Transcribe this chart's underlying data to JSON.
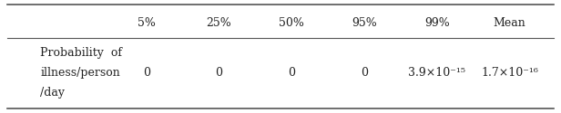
{
  "col_headers": [
    "",
    "5%",
    "25%",
    "50%",
    "95%",
    "99%",
    "Mean"
  ],
  "row_label_lines": [
    "Probability  of",
    "illness/person",
    "/day"
  ],
  "data_values": [
    "0",
    "0",
    "0",
    "0",
    "3.9×10⁻¹⁵",
    "1.7×10⁻¹⁶"
  ],
  "bg_color": "#f5f5f5",
  "header_bg": "#e8e8e8",
  "text_color": "#222222",
  "line_color": "#555555",
  "font_size": 9,
  "fig_width": 6.16,
  "fig_height": 1.25
}
